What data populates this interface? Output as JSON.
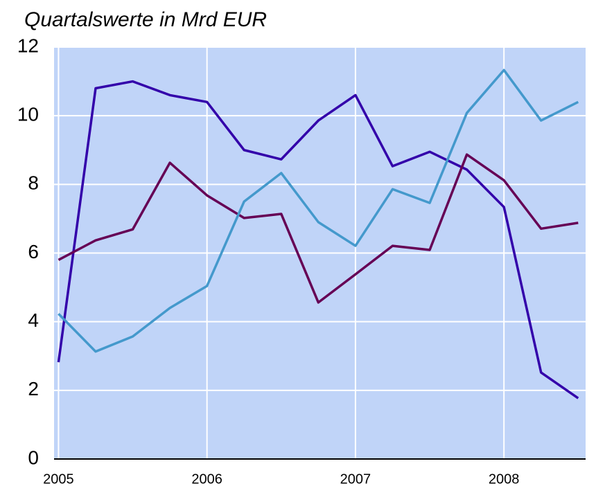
{
  "chart_data": {
    "type": "line",
    "title": "Quartalswerte in Mrd EUR",
    "x": [
      2005,
      2005.25,
      2005.5,
      2005.75,
      2006,
      2006.25,
      2006.5,
      2006.75,
      2007,
      2007.25,
      2007.5,
      2007.75,
      2008,
      2008.25,
      2008.5
    ],
    "series": [
      {
        "color": "#3300aa",
        "values": [
          2.82,
          10.8,
          11.0,
          10.6,
          10.4,
          9.0,
          8.73,
          9.86,
          10.6,
          8.53,
          8.95,
          8.43,
          7.34,
          2.52,
          1.77
        ]
      },
      {
        "color": "#660055",
        "values": [
          5.8,
          6.37,
          6.69,
          8.63,
          7.68,
          7.02,
          7.14,
          4.56,
          5.38,
          6.21,
          6.09,
          8.87,
          8.12,
          6.71,
          6.88
        ]
      },
      {
        "color": "#4499cc",
        "values": [
          4.23,
          3.13,
          3.57,
          4.4,
          5.04,
          7.5,
          8.33,
          6.9,
          6.21,
          7.86,
          7.46,
          10.08,
          11.33,
          9.86,
          10.4
        ]
      }
    ],
    "xlim": [
      2004.97,
      2008.55
    ],
    "xticks": [
      2005,
      2006,
      2007,
      2008
    ],
    "ylim": [
      0,
      12
    ],
    "yticks": [
      0,
      2,
      4,
      6,
      8,
      10,
      12
    ],
    "grid": true,
    "background": "#c0d4f8"
  }
}
